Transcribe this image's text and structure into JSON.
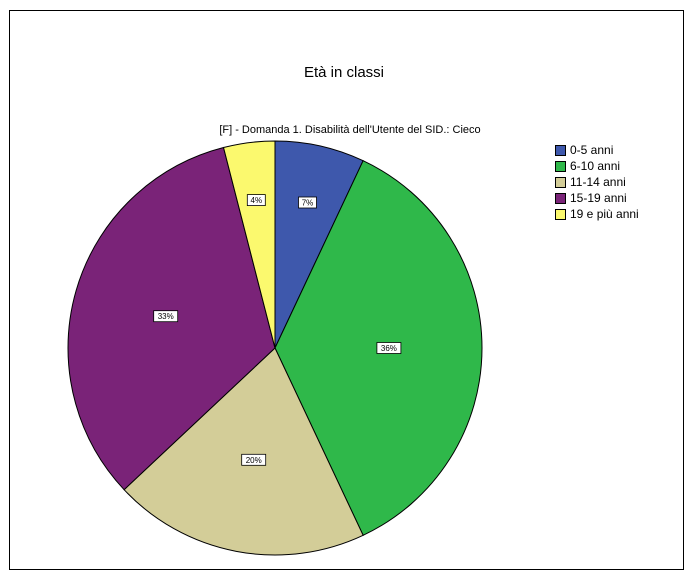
{
  "chart_data": {
    "type": "pie",
    "title": "Età in classi",
    "subtitle": "[F] - Domanda 1. Disabilità dell'Utente del SID.: Cieco",
    "legend_position": "right",
    "start_angle_deg": 0,
    "direction": "clockwise",
    "slices": [
      {
        "label": "0-5 anni",
        "value": 7,
        "display": "7%",
        "color": "#3e58ac"
      },
      {
        "label": "6-10 anni",
        "value": 36,
        "display": "36%",
        "color": "#2fb84a"
      },
      {
        "label": "11-14 anni",
        "value": 20,
        "display": "20%",
        "color": "#d3cd98"
      },
      {
        "label": "15-19 anni",
        "value": 33,
        "display": "33%",
        "color": "#7a2378"
      },
      {
        "label": "19 e più anni",
        "value": 4,
        "display": "4%",
        "color": "#fbf96e"
      }
    ]
  }
}
